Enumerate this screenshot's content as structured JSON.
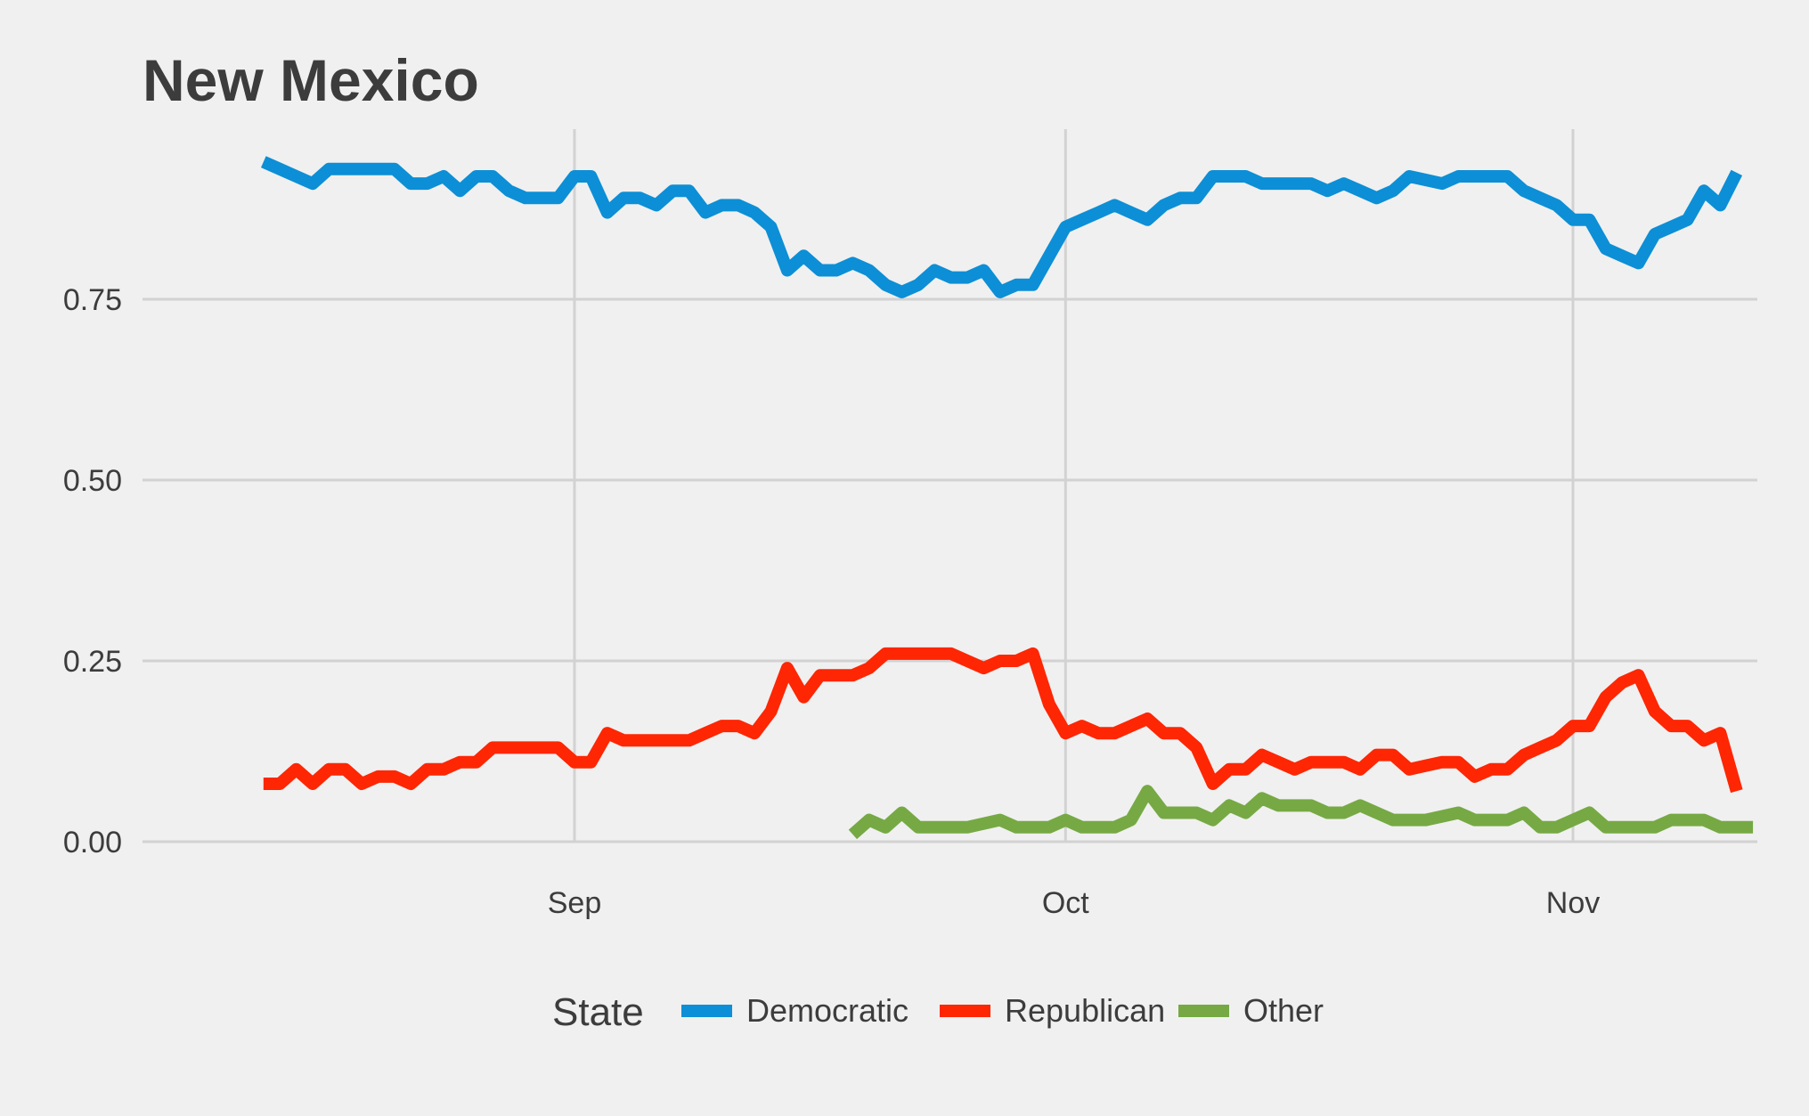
{
  "chart_data": {
    "type": "line",
    "title": "New Mexico",
    "xlabel": "",
    "ylabel": "",
    "x_tick_labels": [
      "Sep",
      "Oct",
      "Nov"
    ],
    "y_tick_labels": [
      "0.00",
      "0.25",
      "0.50",
      "0.75"
    ],
    "y_ticks": [
      0,
      0.25,
      0.5,
      0.75
    ],
    "ylim": [
      0,
      0.96
    ],
    "xlim": [
      "2016-08-09",
      "2016-11-11"
    ],
    "x_tick_dates": [
      "2016-09-01",
      "2016-10-01",
      "2016-11-01"
    ],
    "grid": true,
    "legend": {
      "title": "State",
      "position": "bottom"
    },
    "series": [
      {
        "name": "Democratic",
        "color": "#0c8fd6",
        "start_date": "2016-08-13",
        "values": [
          0.94,
          0.93,
          0.92,
          0.91,
          0.93,
          0.93,
          0.93,
          0.93,
          0.93,
          0.91,
          0.91,
          0.92,
          0.9,
          0.92,
          0.92,
          0.9,
          0.89,
          0.89,
          0.89,
          0.92,
          0.92,
          0.87,
          0.89,
          0.89,
          0.88,
          0.9,
          0.9,
          0.87,
          0.88,
          0.88,
          0.87,
          0.85,
          0.79,
          0.81,
          0.79,
          0.79,
          0.8,
          0.79,
          0.77,
          0.76,
          0.77,
          0.79,
          0.78,
          0.78,
          0.79,
          0.76,
          0.77,
          0.77,
          0.81,
          0.85,
          0.86,
          0.87,
          0.88,
          0.87,
          0.86,
          0.88,
          0.89,
          0.89,
          0.92,
          0.92,
          0.92,
          0.91,
          0.91,
          0.91,
          0.91,
          0.9,
          0.91,
          0.9,
          0.89,
          0.9,
          0.92,
          0.915,
          0.91,
          0.92,
          0.92,
          0.92,
          0.92,
          0.9,
          0.89,
          0.88,
          0.86,
          0.86,
          0.82,
          0.81,
          0.8,
          0.84,
          0.85,
          0.86,
          0.9,
          0.88,
          0.925
        ]
      },
      {
        "name": "Republican",
        "color": "#fe2603",
        "start_date": "2016-08-13",
        "values": [
          0.08,
          0.08,
          0.1,
          0.08,
          0.1,
          0.1,
          0.08,
          0.09,
          0.09,
          0.08,
          0.1,
          0.1,
          0.11,
          0.11,
          0.13,
          0.13,
          0.13,
          0.13,
          0.13,
          0.11,
          0.11,
          0.15,
          0.14,
          0.14,
          0.14,
          0.14,
          0.14,
          0.15,
          0.16,
          0.16,
          0.15,
          0.18,
          0.24,
          0.2,
          0.23,
          0.23,
          0.23,
          0.24,
          0.26,
          0.26,
          0.26,
          0.26,
          0.26,
          0.25,
          0.24,
          0.25,
          0.25,
          0.26,
          0.19,
          0.15,
          0.16,
          0.15,
          0.15,
          0.16,
          0.17,
          0.15,
          0.15,
          0.13,
          0.08,
          0.1,
          0.1,
          0.12,
          0.11,
          0.1,
          0.11,
          0.11,
          0.11,
          0.1,
          0.12,
          0.12,
          0.1,
          0.105,
          0.11,
          0.11,
          0.09,
          0.1,
          0.1,
          0.12,
          0.13,
          0.14,
          0.16,
          0.16,
          0.2,
          0.22,
          0.23,
          0.18,
          0.16,
          0.16,
          0.14,
          0.15,
          0.07
        ]
      },
      {
        "name": "Other",
        "color": "#76a944",
        "start_date": "2016-09-18",
        "values": [
          0.01,
          0.03,
          0.02,
          0.04,
          0.02,
          0.02,
          0.02,
          0.02,
          0.025,
          0.03,
          0.02,
          0.02,
          0.02,
          0.03,
          0.02,
          0.02,
          0.02,
          0.03,
          0.07,
          0.04,
          0.04,
          0.04,
          0.03,
          0.05,
          0.04,
          0.06,
          0.05,
          0.05,
          0.05,
          0.04,
          0.04,
          0.05,
          0.04,
          0.03,
          0.03,
          0.03,
          0.035,
          0.04,
          0.03,
          0.03,
          0.03,
          0.04,
          0.02,
          0.02,
          0.03,
          0.04,
          0.02,
          0.02,
          0.02,
          0.02,
          0.03,
          0.03,
          0.03,
          0.02,
          0.02,
          0.02
        ]
      }
    ]
  }
}
